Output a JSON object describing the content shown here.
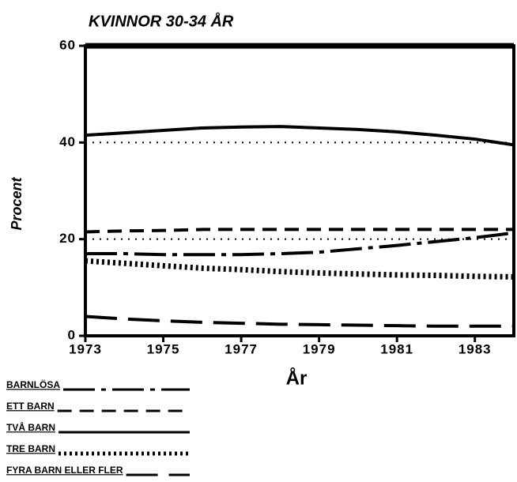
{
  "chart_data": {
    "type": "line",
    "title": "KVINNOR 30-34 ÅR",
    "x_label": "År",
    "y_label": "Procent",
    "x": [
      1973,
      1974,
      1975,
      1976,
      1977,
      1978,
      1979,
      1980,
      1981,
      1982,
      1983,
      1984
    ],
    "xlim": [
      1973,
      1984
    ],
    "xticks": [
      1973,
      1975,
      1977,
      1979,
      1981,
      1983
    ],
    "ylim": [
      0,
      60
    ],
    "yticks": [
      0,
      20,
      40,
      60
    ],
    "grid": true,
    "grid_style": "dotted",
    "series": [
      {
        "name": "BARNLÖSA",
        "color": "#000000",
        "dash": "dash-dot",
        "values": [
          17,
          17,
          16.8,
          16.8,
          16.8,
          17,
          17.3,
          18,
          18.7,
          19.5,
          20.3,
          21.3
        ]
      },
      {
        "name": "ETT BARN",
        "color": "#000000",
        "dash": "dashed",
        "values": [
          21.5,
          21.7,
          21.8,
          22,
          22,
          22,
          22,
          22,
          22,
          22,
          22,
          22
        ]
      },
      {
        "name": "TVÅ BARN",
        "color": "#000000",
        "dash": "solid",
        "values": [
          41.5,
          42,
          42.5,
          43,
          43.2,
          43.3,
          43,
          42.7,
          42.2,
          41.5,
          40.7,
          39.5
        ]
      },
      {
        "name": "TRE BARN",
        "color": "#000000",
        "dash": "dotted",
        "values": [
          15.5,
          15,
          14.5,
          14,
          13.7,
          13.3,
          13,
          12.8,
          12.6,
          12.5,
          12.3,
          12.2
        ]
      },
      {
        "name": "FYRA BARN ELLER FLER",
        "color": "#000000",
        "dash": "long-dash",
        "values": [
          4,
          3.5,
          3.1,
          2.8,
          2.6,
          2.4,
          2.3,
          2.2,
          2.1,
          2,
          2,
          2
        ]
      }
    ]
  }
}
